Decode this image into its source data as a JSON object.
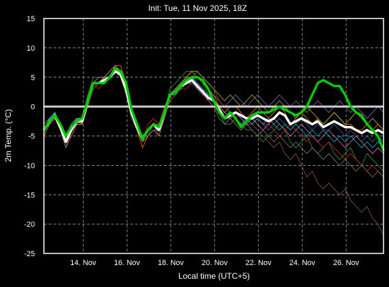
{
  "chart_data": {
    "type": "line",
    "title": "Init: Tue, 11 Nov 2025, 18Z",
    "xlabel": "Local time (UTC+5)",
    "ylabel": "2m Temp. (°C)",
    "ylim": [
      -25,
      15
    ],
    "yticks": [
      -25,
      -20,
      -15,
      -10,
      -5,
      0,
      5,
      10,
      15
    ],
    "xlim": [
      "2025-11-12T05:00",
      "2025-11-27T17:00"
    ],
    "xticks": [
      {
        "x": "2025-11-14T00:00",
        "label": "14. Nov"
      },
      {
        "x": "2025-11-16T00:00",
        "label": "16. Nov"
      },
      {
        "x": "2025-11-18T00:00",
        "label": "18. Nov"
      },
      {
        "x": "2025-11-20T00:00",
        "label": "20. Nov"
      },
      {
        "x": "2025-11-22T00:00",
        "label": "22. Nov"
      },
      {
        "x": "2025-11-24T00:00",
        "label": "24. Nov"
      },
      {
        "x": "2025-11-26T00:00",
        "label": "26. Nov"
      }
    ],
    "grid": true,
    "zero_line": 0,
    "x": [
      "2025-11-12T05:00",
      "2025-11-12T11:00",
      "2025-11-12T17:00",
      "2025-11-12T23:00",
      "2025-11-13T05:00",
      "2025-11-13T11:00",
      "2025-11-13T17:00",
      "2025-11-13T23:00",
      "2025-11-14T05:00",
      "2025-11-14T11:00",
      "2025-11-14T17:00",
      "2025-11-14T23:00",
      "2025-11-15T05:00",
      "2025-11-15T11:00",
      "2025-11-15T17:00",
      "2025-11-15T23:00",
      "2025-11-16T05:00",
      "2025-11-16T11:00",
      "2025-11-16T17:00",
      "2025-11-16T23:00",
      "2025-11-17T05:00",
      "2025-11-17T11:00",
      "2025-11-17T17:00",
      "2025-11-17T23:00",
      "2025-11-18T05:00",
      "2025-11-18T11:00",
      "2025-11-18T17:00",
      "2025-11-18T23:00",
      "2025-11-19T05:00",
      "2025-11-19T11:00",
      "2025-11-19T17:00",
      "2025-11-19T23:00",
      "2025-11-20T05:00",
      "2025-11-20T11:00",
      "2025-11-20T17:00",
      "2025-11-20T23:00",
      "2025-11-21T05:00",
      "2025-11-21T11:00",
      "2025-11-21T17:00",
      "2025-11-21T23:00",
      "2025-11-22T05:00",
      "2025-11-22T11:00",
      "2025-11-22T17:00",
      "2025-11-22T23:00",
      "2025-11-23T05:00",
      "2025-11-23T11:00",
      "2025-11-23T17:00",
      "2025-11-23T23:00",
      "2025-11-24T05:00",
      "2025-11-24T11:00",
      "2025-11-24T17:00",
      "2025-11-24T23:00",
      "2025-11-25T05:00",
      "2025-11-25T11:00",
      "2025-11-25T17:00",
      "2025-11-25T23:00",
      "2025-11-26T05:00",
      "2025-11-26T11:00",
      "2025-11-26T17:00",
      "2025-11-26T23:00",
      "2025-11-27T05:00",
      "2025-11-27T11:00",
      "2025-11-27T17:00"
    ],
    "mean": [
      -4,
      -2.5,
      -1.5,
      -3.5,
      -6,
      -4,
      -2.5,
      -2.5,
      1,
      4,
      4,
      4.5,
      5,
      6,
      5.5,
      3,
      -1,
      -3.5,
      -5.5,
      -4,
      -3,
      -4,
      -1,
      2,
      2.5,
      3.5,
      4,
      4.5,
      3.5,
      2.5,
      1.5,
      1,
      -0.5,
      -2,
      -1.5,
      -1,
      -1.5,
      -2,
      -2,
      -1.5,
      -2,
      -2.5,
      -2,
      -1,
      -1.5,
      -3,
      -2.5,
      -2,
      -2.5,
      -3,
      -2.5,
      -3.5,
      -3,
      -2.5,
      -3,
      -3.5,
      -3.5,
      -4,
      -4.5,
      -4,
      -4.5,
      -4,
      -4.5
    ],
    "control": [
      -4,
      -2.5,
      -1.5,
      -3,
      -5,
      -3.5,
      -2.5,
      -2,
      1,
      4,
      4,
      4,
      5,
      6.5,
      6,
      4,
      -0.5,
      -3,
      -5.5,
      -4,
      -3,
      -3.5,
      -1,
      2,
      2.5,
      3.5,
      4.5,
      5,
      5,
      4.5,
      3,
      1,
      -1,
      -2,
      -1,
      -2,
      -3.5,
      -2.5,
      -1.5,
      -1,
      -1,
      -1,
      -0.5,
      0,
      -0.5,
      -1,
      -1.5,
      -1,
      0,
      2,
      4,
      4.5,
      4,
      3.5,
      3.5,
      2,
      0,
      -1,
      -1.5,
      -3,
      -4,
      -5,
      -7.5
    ],
    "colors": {
      "mean": "#ffffff",
      "control": "#00cc00",
      "zero_line": "#cccccc",
      "background": "#000000",
      "grid": "#bbbbbb"
    },
    "member_colors": [
      "#1f77b4",
      "#ff7f0e",
      "#2ca02c",
      "#d62728",
      "#9467bd",
      "#8c564b",
      "#e377c2",
      "#7f7f7f",
      "#bcbd22",
      "#17becf"
    ],
    "members": [
      [
        -4,
        -2,
        -1,
        -3,
        -6,
        -4,
        -2,
        -2,
        1,
        4,
        4,
        5,
        5,
        6,
        6,
        3,
        -1,
        -3,
        -5,
        -4,
        -3,
        -4,
        -1,
        2,
        3,
        4,
        4,
        5,
        3,
        2,
        1,
        0,
        -1,
        -2,
        -1,
        -1,
        -2,
        -3,
        -3,
        -2,
        -3,
        -4,
        -3,
        -2,
        -3,
        -4,
        -3,
        -2,
        -3,
        -4,
        -3,
        -4,
        -4,
        -3,
        -4,
        -5,
        -4,
        -5,
        -6,
        -5,
        -6,
        -5,
        -6
      ],
      [
        -3,
        -2,
        -1,
        -4,
        -7,
        -5,
        -3,
        -3,
        0,
        3,
        4,
        5,
        5,
        7,
        7,
        4,
        -1,
        -4,
        -7,
        -5,
        -4,
        -5,
        -2,
        1,
        2,
        4,
        5,
        6,
        5,
        4,
        3,
        2,
        0,
        -1,
        0,
        0,
        -1,
        -2,
        -1,
        0,
        -1,
        -2,
        -1,
        0,
        -1,
        -3,
        -2,
        -1,
        -2,
        -3,
        -2,
        -3,
        -2,
        -1,
        -2,
        -3,
        -3,
        -4,
        -4,
        -3,
        -4,
        -3,
        -4
      ],
      [
        -5,
        -3,
        -2,
        -4,
        -5,
        -3,
        -2,
        -2,
        2,
        5,
        5,
        5,
        6,
        7,
        6,
        3,
        -1,
        -3,
        -6,
        -5,
        -3,
        -4,
        -1,
        3,
        4,
        5,
        6,
        6,
        5,
        4,
        2,
        1,
        -1,
        -3,
        -3,
        -2,
        -3,
        -4,
        -4,
        -5,
        -6,
        -5,
        -4,
        -3,
        -4,
        -6,
        -7,
        -6,
        -5,
        -7,
        -8,
        -7,
        -6,
        -8,
        -9,
        -8,
        -7,
        -9,
        -10,
        -8,
        -9,
        -10,
        -11
      ],
      [
        -4,
        -3,
        -2,
        -3,
        -6,
        -4,
        -3,
        -3,
        1,
        4,
        3,
        4,
        5,
        6,
        5,
        2,
        -2,
        -4,
        -6,
        -3,
        -2,
        -3,
        0,
        2,
        2,
        3,
        3,
        4,
        3,
        2,
        1,
        0,
        -1,
        -2,
        -2,
        -3,
        -4,
        -3,
        -3,
        -2,
        -3,
        -3,
        -4,
        -5,
        -4,
        -3,
        -4,
        -5,
        -6,
        -5,
        -6,
        -7,
        -6,
        -7,
        -8,
        -9,
        -8,
        -9,
        -10,
        -11,
        -10,
        -11,
        -12
      ],
      [
        -4,
        -2,
        -1,
        -3,
        -5,
        -3,
        -2,
        -2,
        1,
        4,
        4,
        4,
        5,
        6,
        6,
        3,
        0,
        -3,
        -5,
        -4,
        -3,
        -3,
        -1,
        2,
        3,
        3,
        4,
        4,
        3,
        2,
        2,
        2,
        1,
        0,
        1,
        2,
        1,
        0,
        1,
        2,
        1,
        0,
        1,
        2,
        1,
        0,
        1,
        0,
        -1,
        0,
        1,
        0,
        -1,
        0,
        1,
        0,
        -1,
        0,
        -1,
        -2,
        -1,
        0,
        -1
      ],
      [
        -3,
        -2,
        -1,
        -4,
        -6,
        -4,
        -3,
        -2,
        0,
        3,
        4,
        5,
        5,
        6,
        6,
        4,
        0,
        -3,
        -5,
        -4,
        -3,
        -4,
        -2,
        1,
        2,
        3,
        4,
        5,
        6,
        5,
        4,
        3,
        1,
        0,
        -1,
        -2,
        -1,
        -2,
        -3,
        -4,
        -5,
        -6,
        -7,
        -6,
        -8,
        -9,
        -8,
        -10,
        -12,
        -11,
        -13,
        -14,
        -13,
        -14,
        -15,
        -14,
        -16,
        -17,
        -18,
        -17,
        -19,
        -20,
        -22
      ],
      [
        -5,
        -3,
        -2,
        -3,
        -6,
        -5,
        -3,
        -3,
        1,
        4,
        5,
        5,
        6,
        7,
        6,
        3,
        -1,
        -4,
        -6,
        -5,
        -4,
        -4,
        -1,
        2,
        3,
        4,
        5,
        5,
        4,
        3,
        2,
        1,
        0,
        -1,
        -2,
        -1,
        -2,
        -3,
        -2,
        -3,
        -4,
        -3,
        -2,
        -3,
        -4,
        -5,
        -4,
        -3,
        -4,
        -5,
        -6,
        -5,
        -4,
        -5,
        -6,
        -7,
        -6,
        -5,
        -6,
        -7,
        -8,
        -7,
        -8
      ],
      [
        -4,
        -2,
        -2,
        -4,
        -7,
        -4,
        -2,
        -2,
        1,
        4,
        4,
        4,
        5,
        6,
        5,
        2,
        -2,
        -4,
        -6,
        -4,
        -3,
        -5,
        -2,
        2,
        2,
        3,
        4,
        5,
        4,
        3,
        1,
        0,
        -2,
        -3,
        -2,
        -3,
        -4,
        -3,
        -4,
        -5,
        -4,
        -5,
        -6,
        -5,
        -6,
        -7,
        -6,
        -7,
        -8,
        -7,
        -8,
        -9,
        -8,
        -9,
        -10,
        -9,
        -10,
        -11,
        -10,
        -11,
        -12,
        -11,
        -12
      ],
      [
        -4,
        -3,
        -1,
        -3,
        -6,
        -4,
        -2,
        -3,
        1,
        4,
        4,
        5,
        5,
        6,
        6,
        3,
        -1,
        -3,
        -5,
        -4,
        -3,
        -4,
        -1,
        2,
        3,
        4,
        5,
        6,
        6,
        5,
        4,
        3,
        2,
        1,
        2,
        1,
        0,
        1,
        2,
        1,
        0,
        -1,
        0,
        1,
        0,
        -1,
        -2,
        -1,
        0,
        -1,
        -2,
        -3,
        -2,
        -1,
        -2,
        -3,
        -2,
        -1,
        -2,
        -3,
        -2,
        -3,
        -4
      ],
      [
        -4,
        -2,
        -1,
        -3,
        -6,
        -3,
        -2,
        -2,
        1,
        4,
        4,
        4,
        5,
        6,
        6,
        3,
        -1,
        -3,
        -5,
        -4,
        -3,
        -4,
        -1,
        2,
        2,
        4,
        4,
        5,
        4,
        3,
        2,
        1,
        -1,
        -2,
        -1,
        -2,
        -3,
        -2,
        -3,
        -2,
        -3,
        -2,
        -3,
        -4,
        -3,
        -4,
        -3,
        -4,
        -5,
        -4,
        -5,
        -4,
        -5,
        -6,
        -5,
        -6,
        -5,
        -6,
        -7,
        -6,
        -7,
        -6,
        -7
      ]
    ]
  }
}
